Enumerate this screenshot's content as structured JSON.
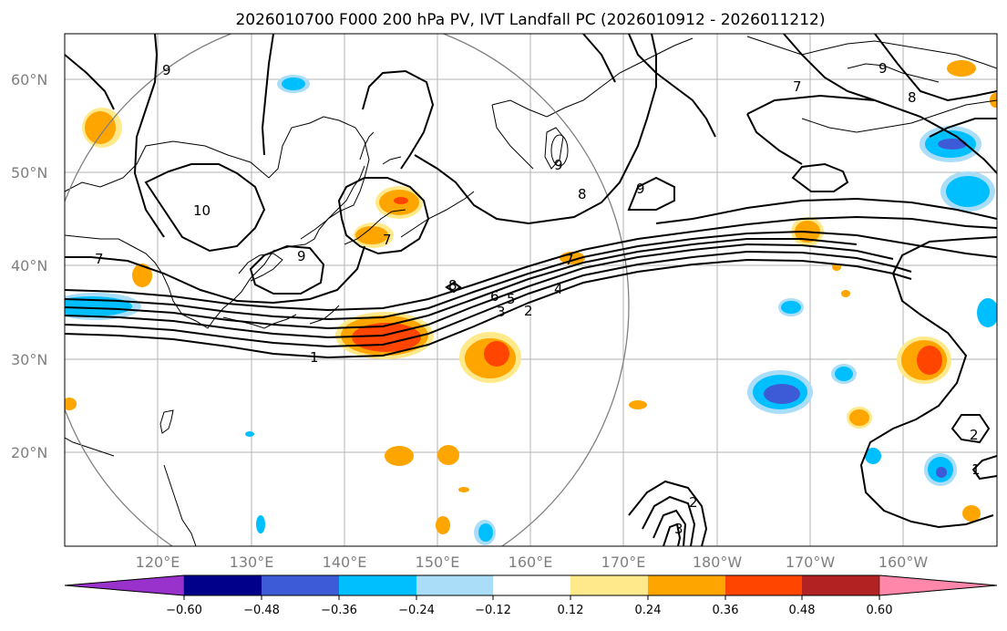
{
  "title": "2026010700 F000 200 hPa PV, IVT Landfall PC (2026010912 - 2026011212)",
  "lat_labels": [
    "60°N",
    "50°N",
    "40°N",
    "30°N",
    "20°N"
  ],
  "lon_labels": [
    "120°E",
    "130°E",
    "140°E",
    "150°E",
    "160°E",
    "170°E",
    "180°W",
    "170°W",
    "160°W"
  ],
  "colorbar": {
    "tick_labels": [
      "−0.60",
      "−0.48",
      "−0.36",
      "−0.24",
      "−0.12",
      "0.12",
      "0.24",
      "0.36",
      "0.48",
      "0.60"
    ],
    "colors": [
      "#9932cc",
      "#00008b",
      "#3d5bd6",
      "#00bfff",
      "#aaddf7",
      "#ffffff",
      "#ffe98a",
      "#ffa500",
      "#ff4500",
      "#b22222",
      "#ff88aa"
    ]
  },
  "contour_labels": [
    "1",
    "2",
    "3",
    "4",
    "5",
    "6",
    "7",
    "8",
    "9",
    "10"
  ],
  "colors": {
    "coast": "#000000",
    "grid": "#b3b3b3",
    "contour": "#000000",
    "circle": "#808080"
  }
}
